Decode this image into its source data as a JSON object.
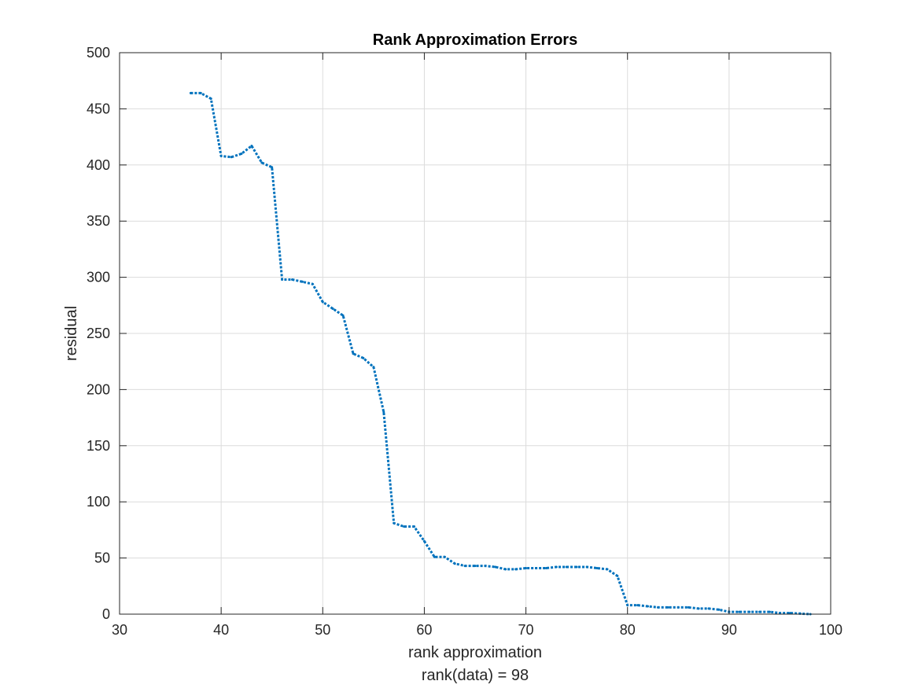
{
  "chart_data": {
    "type": "line",
    "title": "Rank Approximation Errors",
    "xlabel": "rank approximation",
    "xlabel2": "rank(data) = 98",
    "ylabel": "residual",
    "xlim": [
      30,
      100
    ],
    "ylim": [
      0,
      500
    ],
    "xticks": [
      "30",
      "40",
      "50",
      "60",
      "70",
      "80",
      "90",
      "100"
    ],
    "yticks": [
      "0",
      "50",
      "100",
      "150",
      "200",
      "250",
      "300",
      "350",
      "400",
      "450",
      "500"
    ],
    "grid": true,
    "series": [
      {
        "color": "#0072BD",
        "line_style": "dotted",
        "x": [
          37,
          38,
          39,
          40,
          41,
          42,
          43,
          44,
          45,
          46,
          47,
          48,
          49,
          50,
          51,
          52,
          53,
          54,
          55,
          56,
          57,
          58,
          59,
          60,
          61,
          62,
          63,
          64,
          65,
          66,
          67,
          68,
          69,
          70,
          71,
          72,
          73,
          74,
          75,
          76,
          77,
          78,
          79,
          80,
          81,
          82,
          83,
          84,
          85,
          86,
          87,
          88,
          89,
          90,
          91,
          92,
          93,
          94,
          95,
          96,
          97,
          98
        ],
        "y": [
          464,
          464,
          459,
          408,
          407,
          410,
          417,
          402,
          398,
          298,
          298,
          296,
          294,
          278,
          272,
          266,
          232,
          228,
          220,
          180,
          81,
          78,
          78,
          65,
          51,
          51,
          45,
          43,
          43,
          43,
          42,
          40,
          40,
          41,
          41,
          41,
          42,
          42,
          42,
          42,
          41,
          40,
          34,
          8,
          8,
          7,
          6,
          6,
          6,
          6,
          5,
          5,
          4,
          2,
          2,
          2,
          2,
          2,
          1,
          1,
          0.5,
          0
        ]
      }
    ]
  }
}
